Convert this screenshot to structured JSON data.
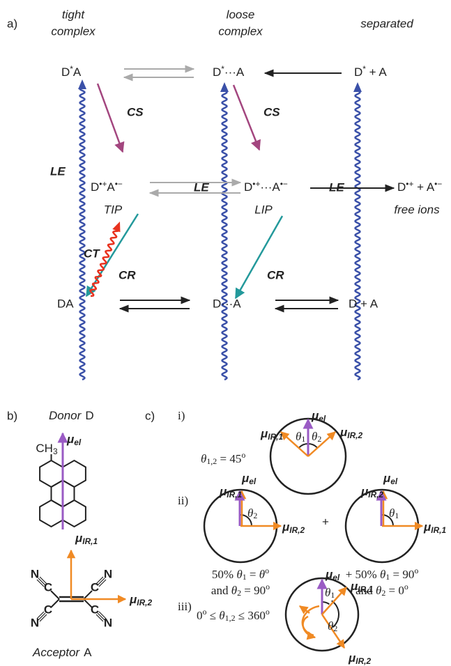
{
  "panel_a": {
    "label": "a)",
    "headers": {
      "tight": [
        "tight",
        "complex"
      ],
      "loose": [
        "loose",
        "complex"
      ],
      "separated": "separated"
    },
    "states": {
      "excited_tight": [
        "D",
        "*",
        "A"
      ],
      "excited_loose": [
        "D",
        "*",
        "···A"
      ],
      "excited_sep": [
        "D",
        "*",
        " + A"
      ],
      "ion_tight": [
        "D",
        "•+",
        "A",
        "•−"
      ],
      "ion_loose": [
        "D",
        "•+",
        "···A",
        "•−"
      ],
      "ion_sep": [
        "D",
        "•+",
        " + A",
        "•−"
      ],
      "ground_tight": "DA",
      "ground_loose": "D···A",
      "ground_sep": "D + A"
    },
    "pair_labels": {
      "tip": "TIP",
      "lip": "LIP",
      "free": "free ions"
    },
    "processes": {
      "le": [
        "LE",
        "LE",
        "LE"
      ],
      "cs": [
        "CS",
        "CS"
      ],
      "cr": [
        "CR",
        "CR"
      ],
      "ct": "CT"
    }
  },
  "panel_b": {
    "label": "b)",
    "donor": [
      "Donor",
      "D"
    ],
    "methyl": [
      "CH",
      "3"
    ],
    "mu_el": [
      "μ",
      "el"
    ],
    "mu_ir1": [
      "μ",
      "IR,1"
    ],
    "mu_ir2": [
      "μ",
      "IR,2"
    ],
    "acceptor": [
      "Acceptor",
      "A"
    ],
    "carbons": [
      "C",
      "C",
      "C",
      "C"
    ],
    "nitrogens": [
      "N",
      "N",
      "N",
      "N"
    ]
  },
  "panel_c": {
    "label": "c)",
    "i": {
      "label": "i)",
      "condition": [
        "θ",
        "1,2",
        " = 45",
        "o"
      ],
      "mu_el": [
        "μ",
        "el"
      ],
      "mu_ir1": [
        "μ",
        "IR,1"
      ],
      "mu_ir2": [
        "μ",
        "IR,2"
      ],
      "theta1": [
        "θ",
        "1"
      ],
      "theta2": [
        "θ",
        "2"
      ]
    },
    "ii": {
      "label": "ii)",
      "plus": "+",
      "left": {
        "mu_el": [
          "μ",
          "el"
        ],
        "mu_ir1": [
          "μ",
          "IR,1"
        ],
        "mu_ir2": [
          "μ",
          "IR,2"
        ],
        "theta": [
          "θ",
          "2"
        ],
        "caption": [
          [
            "50% ",
            "θ",
            "1",
            " = ",
            "θ",
            "o"
          ],
          [
            "and ",
            "θ",
            "2",
            " = 90",
            "o"
          ]
        ]
      },
      "right": {
        "mu_el": [
          "μ",
          "el"
        ],
        "mu_ir2": [
          "μ",
          "IR,2"
        ],
        "mu_ir1": [
          "μ",
          "IR,1"
        ],
        "theta": [
          "θ",
          "1"
        ],
        "caption": [
          [
            "+ 50% ",
            "θ",
            "1",
            " = 90",
            "o"
          ],
          [
            "and ",
            "θ",
            "2",
            " = 0",
            "o"
          ]
        ]
      }
    },
    "iii": {
      "label": "iii)",
      "condition": [
        "0",
        "o",
        " ≤ ",
        "θ",
        "1,2",
        " ≤ 360",
        "o"
      ],
      "mu_el": [
        "μ",
        "el"
      ],
      "mu_ir1": [
        "μ",
        "IR,1"
      ],
      "mu_ir2": [
        "μ",
        "IR,2"
      ],
      "theta1": [
        "θ",
        "1"
      ],
      "theta2": [
        "θ",
        "2"
      ]
    }
  }
}
